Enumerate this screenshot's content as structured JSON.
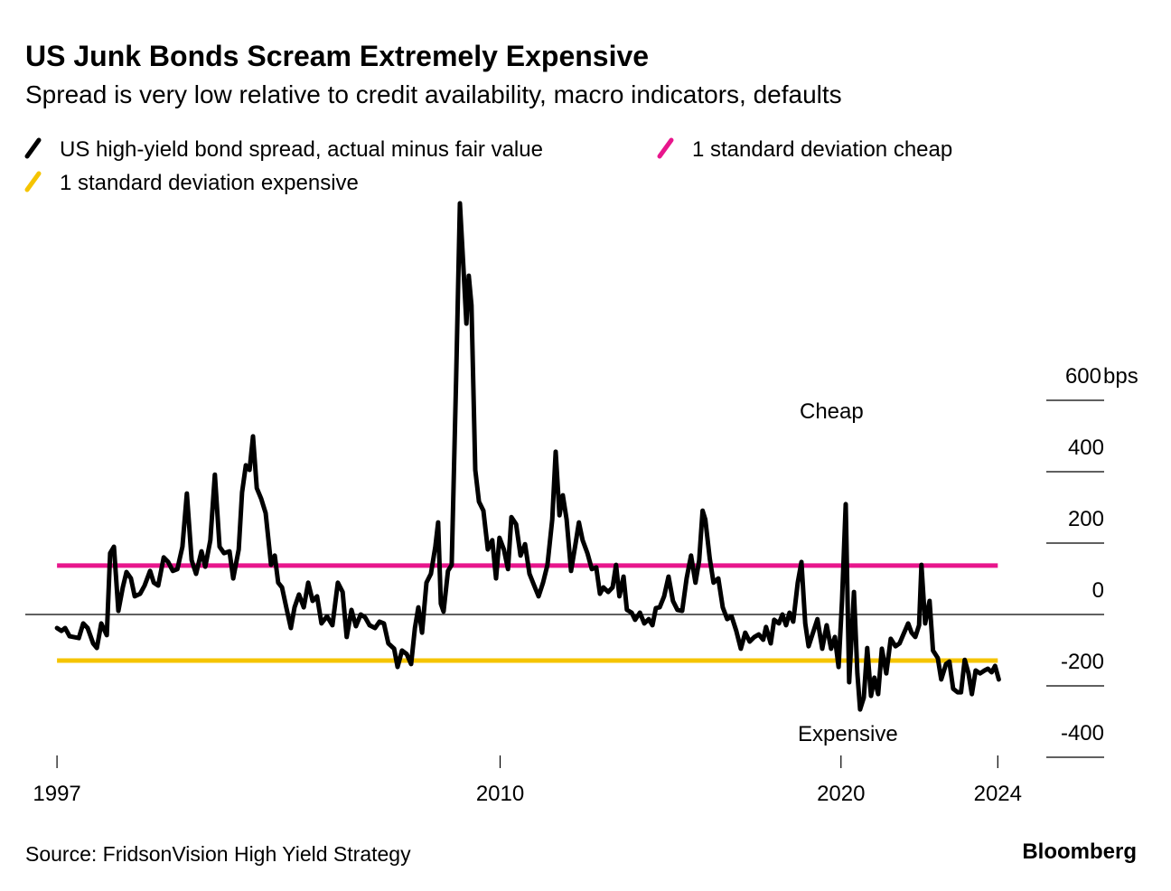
{
  "chart_data": {
    "type": "line",
    "title": "US Junk Bonds Scream Extremely Expensive",
    "subtitle": "Spread is very low relative to credit availability, macro indicators, defaults",
    "source": "Source: FridsonVision High Yield Strategy",
    "brand": "Bloomberg",
    "y_unit": "bps",
    "annotations": [
      "Cheap",
      "Expensive"
    ],
    "xlim": [
      1996.07,
      2027.72
    ],
    "ylim": [
      -420,
      1180
    ],
    "xticks": [
      1997,
      2010,
      2020,
      {
        "value": 2024.6,
        "label": "2024"
      }
    ],
    "yticks": [
      600,
      400,
      200,
      0,
      -200,
      -400
    ],
    "series": [
      {
        "name": "US high-yield bond spread, actual minus fair value",
        "color": "#000000",
        "x": [
          1997.0,
          1997.13,
          1997.24,
          1997.37,
          1997.64,
          1997.77,
          1997.9,
          1998.06,
          1998.17,
          1998.3,
          1998.46,
          1998.56,
          1998.67,
          1998.8,
          1998.93,
          1999.04,
          1999.17,
          1999.28,
          1999.44,
          1999.57,
          1999.73,
          1999.84,
          1999.97,
          2000.13,
          2000.26,
          2000.4,
          2000.53,
          2000.68,
          2000.81,
          2000.95,
          2001.08,
          2001.24,
          2001.35,
          2001.5,
          2001.63,
          2001.77,
          2001.9,
          2002.06,
          2002.17,
          2002.33,
          2002.43,
          2002.54,
          2002.65,
          2002.75,
          2002.86,
          2002.99,
          2003.12,
          2003.28,
          2003.39,
          2003.49,
          2003.6,
          2003.73,
          2003.86,
          2003.97,
          2004.1,
          2004.24,
          2004.37,
          2004.5,
          2004.63,
          2004.76,
          2004.92,
          2005.08,
          2005.24,
          2005.38,
          2005.5,
          2005.64,
          2005.77,
          2005.91,
          2006.04,
          2006.17,
          2006.33,
          2006.46,
          2006.59,
          2006.72,
          2006.89,
          2006.99,
          2007.12,
          2007.26,
          2007.39,
          2007.5,
          2007.6,
          2007.71,
          2007.84,
          2007.97,
          2008.1,
          2008.18,
          2008.26,
          2008.34,
          2008.47,
          2008.58,
          2008.71,
          2008.82,
          2008.93,
          2009.01,
          2009.08,
          2009.16,
          2009.27,
          2009.38,
          2009.51,
          2009.64,
          2009.77,
          2009.88,
          2009.98,
          2010.11,
          2010.23,
          2010.33,
          2010.47,
          2010.6,
          2010.73,
          2010.86,
          2011.0,
          2011.13,
          2011.26,
          2011.39,
          2011.53,
          2011.63,
          2011.74,
          2011.84,
          2011.95,
          2012.08,
          2012.21,
          2012.31,
          2012.42,
          2012.56,
          2012.69,
          2012.82,
          2012.93,
          2013.03,
          2013.17,
          2013.3,
          2013.4,
          2013.5,
          2013.62,
          2013.72,
          2013.86,
          2013.96,
          2014.1,
          2014.23,
          2014.36,
          2014.47,
          2014.57,
          2014.68,
          2014.81,
          2014.94,
          2015.07,
          2015.2,
          2015.34,
          2015.47,
          2015.6,
          2015.73,
          2015.84,
          2015.94,
          2016.02,
          2016.15,
          2016.26,
          2016.4,
          2016.53,
          2016.66,
          2016.79,
          2016.93,
          2017.06,
          2017.19,
          2017.32,
          2017.46,
          2017.59,
          2017.72,
          2017.8,
          2017.94,
          2018.04,
          2018.18,
          2018.28,
          2018.39,
          2018.49,
          2018.6,
          2018.73,
          2018.84,
          2018.95,
          2019.05,
          2019.18,
          2019.31,
          2019.45,
          2019.58,
          2019.71,
          2019.82,
          2019.93,
          2020.03,
          2020.14,
          2020.24,
          2020.38,
          2020.48,
          2020.56,
          2020.67,
          2020.77,
          2020.88,
          2020.98,
          2021.09,
          2021.2,
          2021.33,
          2021.46,
          2021.6,
          2021.72,
          2021.83,
          2021.97,
          2022.07,
          2022.18,
          2022.29,
          2022.36,
          2022.47,
          2022.6,
          2022.7,
          2022.84,
          2022.94,
          2023.08,
          2023.18,
          2023.29,
          2023.42,
          2023.52,
          2023.63,
          2023.74,
          2023.84,
          2023.95,
          2024.08,
          2024.21,
          2024.31,
          2024.42,
          2024.52,
          2024.63
        ],
        "values": [
          -38,
          -46,
          -38,
          -61,
          -66,
          -25,
          -38,
          -81,
          -94,
          -25,
          -58,
          172,
          190,
          10,
          76,
          119,
          101,
          51,
          58,
          81,
          122,
          89,
          81,
          160,
          147,
          122,
          127,
          190,
          339,
          152,
          114,
          177,
          134,
          208,
          392,
          190,
          172,
          177,
          101,
          182,
          342,
          418,
          405,
          499,
          354,
          324,
          284,
          139,
          165,
          89,
          76,
          18,
          -38,
          20,
          56,
          20,
          89,
          38,
          51,
          -25,
          -5,
          -30,
          89,
          63,
          -63,
          13,
          -33,
          0,
          -8,
          -30,
          -38,
          -20,
          -25,
          -81,
          -96,
          -147,
          -101,
          -111,
          -139,
          -38,
          20,
          -51,
          89,
          114,
          190,
          258,
          30,
          8,
          122,
          139,
          658,
          1152,
          962,
          815,
          949,
          866,
          405,
          316,
          291,
          182,
          208,
          101,
          215,
          182,
          127,
          273,
          253,
          165,
          197,
          114,
          81,
          51,
          89,
          139,
          266,
          456,
          278,
          334,
          266,
          122,
          197,
          258,
          208,
          172,
          127,
          132,
          58,
          76,
          63,
          76,
          139,
          51,
          106,
          13,
          5,
          -15,
          5,
          -25,
          -13,
          -30,
          18,
          20,
          51,
          106,
          38,
          13,
          10,
          101,
          165,
          89,
          152,
          291,
          266,
          157,
          89,
          101,
          20,
          -13,
          -5,
          -46,
          -96,
          -51,
          -76,
          -63,
          -56,
          -71,
          -35,
          -81,
          -15,
          -25,
          0,
          -30,
          5,
          -20,
          89,
          147,
          -25,
          -89,
          -51,
          -13,
          -96,
          -30,
          -96,
          -63,
          -147,
          38,
          309,
          -190,
          63,
          -165,
          -266,
          -233,
          -94,
          -228,
          -177,
          -223,
          -96,
          -165,
          -68,
          -89,
          -81,
          -56,
          -25,
          -51,
          -63,
          -30,
          139,
          -25,
          38,
          -101,
          -122,
          -182,
          -139,
          -132,
          -208,
          -218,
          -218,
          -127,
          -165,
          -223,
          -157,
          -165,
          -157,
          -152,
          -162,
          -144,
          -182
        ]
      },
      {
        "name": "1 standard deviation cheap",
        "color": "#e8168c",
        "x": [
          1997,
          2024.6
        ],
        "values": [
          137,
          137
        ]
      },
      {
        "name": "1 standard deviation expensive",
        "color": "#f5c400",
        "x": [
          1997,
          2024.6
        ],
        "values": [
          -129,
          -129
        ]
      }
    ]
  }
}
